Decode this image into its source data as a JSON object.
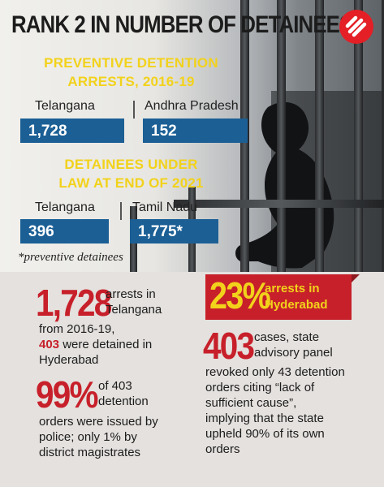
{
  "title": "RANK 2 IN NUMBER OF DETAINEES",
  "logo_icon": "indian-express-logo",
  "section1": {
    "heading_line1": "PREVENTIVE DETENTION",
    "heading_line2": "ARRESTS, 2016-19",
    "left_label": "Telangana",
    "left_value": "1,728",
    "right_label": "Andhra Pradesh",
    "right_value": "152"
  },
  "section2": {
    "heading_line1": "DETAINEES UNDER",
    "heading_line2": "LAW AT END OF 2021",
    "left_label": "Telangana",
    "left_value": "396",
    "right_label": "Tamil Nadu",
    "right_value": "1,775*"
  },
  "footnote": "*preventive detainees",
  "fact1": {
    "number": "1,728",
    "text_a1": "arrests in",
    "text_a2": "Telangana",
    "text_b": "from 2016-19,",
    "highlight": "403",
    "text_c": " were detained in",
    "text_d": "Hyderabad"
  },
  "fact2": {
    "number": "99%",
    "text_a1": "of 403",
    "text_a2": "detention",
    "text_b": "orders were issued by",
    "text_c": "police; only 1% by",
    "text_d": "district magistrates"
  },
  "fact3": {
    "number": "23%",
    "text_a1": "arrests in",
    "text_a2": "Hyderabad"
  },
  "fact4": {
    "number": "403",
    "text_a1": "cases, state",
    "text_a2": "advisory panel",
    "text_b": "revoked only 43 detention",
    "text_c": "orders citing “lack of",
    "text_d": "sufficient cause”,",
    "text_e": "implying that the state",
    "text_f": "upheld 90% of its own",
    "text_g": "orders"
  },
  "colors": {
    "accent_yellow": "#f2d21b",
    "value_box_blue": "#1b5f95",
    "highlight_red": "#c7202a",
    "lower_panel": "#e4e1de"
  }
}
